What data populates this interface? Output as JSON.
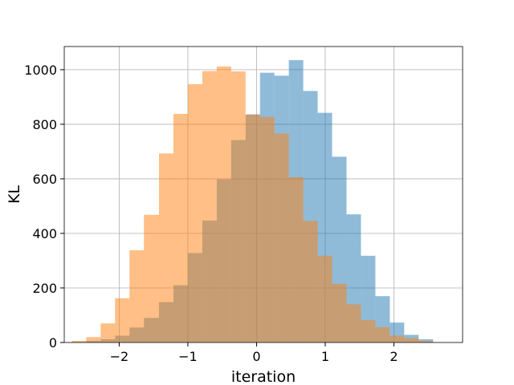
{
  "chart_data": {
    "type": "bar",
    "title": "",
    "xlabel": "iteration",
    "ylabel": "KL",
    "xlim": [
      -2.8,
      3.0
    ],
    "ylim": [
      0,
      1085
    ],
    "xticks": [
      -2,
      -1,
      0,
      1,
      2
    ],
    "yticks": [
      0,
      200,
      400,
      600,
      800,
      1000
    ],
    "grid": true,
    "legend": "none",
    "series": [
      {
        "color": "#1f77b4",
        "opacity": 0.5,
        "bins": [
          [
            -2.69,
            -2.48,
            2
          ],
          [
            -2.48,
            -2.27,
            6
          ],
          [
            -2.27,
            -2.06,
            12
          ],
          [
            -2.06,
            -1.85,
            25
          ],
          [
            -1.85,
            -1.64,
            55
          ],
          [
            -1.64,
            -1.42,
            90
          ],
          [
            -1.42,
            -1.21,
            148
          ],
          [
            -1.21,
            -1.0,
            210
          ],
          [
            -1.0,
            -0.79,
            328
          ],
          [
            -0.79,
            -0.58,
            447
          ],
          [
            -0.58,
            -0.37,
            598
          ],
          [
            -0.37,
            -0.16,
            742
          ],
          [
            -0.16,
            0.05,
            836
          ],
          [
            0.05,
            0.26,
            989
          ],
          [
            0.26,
            0.47,
            978
          ],
          [
            0.47,
            0.68,
            1035
          ],
          [
            0.68,
            0.89,
            922
          ],
          [
            0.89,
            1.1,
            842
          ],
          [
            1.1,
            1.31,
            681
          ],
          [
            1.31,
            1.52,
            470
          ],
          [
            1.52,
            1.73,
            318
          ],
          [
            1.73,
            1.94,
            170
          ],
          [
            1.94,
            2.15,
            73
          ],
          [
            2.15,
            2.36,
            28
          ],
          [
            2.36,
            2.57,
            12
          ]
        ]
      },
      {
        "color": "#ff7f0e",
        "opacity": 0.5,
        "bins": [
          [
            -2.69,
            -2.48,
            6
          ],
          [
            -2.48,
            -2.27,
            20
          ],
          [
            -2.27,
            -2.06,
            70
          ],
          [
            -2.06,
            -1.85,
            162
          ],
          [
            -1.85,
            -1.64,
            338
          ],
          [
            -1.64,
            -1.42,
            468
          ],
          [
            -1.42,
            -1.21,
            693
          ],
          [
            -1.21,
            -1.0,
            838
          ],
          [
            -1.0,
            -0.79,
            947
          ],
          [
            -0.79,
            -0.58,
            995
          ],
          [
            -0.58,
            -0.37,
            1012
          ],
          [
            -0.37,
            -0.16,
            994
          ],
          [
            -0.16,
            0.05,
            836
          ],
          [
            0.05,
            0.26,
            827
          ],
          [
            0.26,
            0.47,
            766
          ],
          [
            0.47,
            0.68,
            606
          ],
          [
            0.68,
            0.89,
            446
          ],
          [
            0.89,
            1.1,
            318
          ],
          [
            1.1,
            1.31,
            215
          ],
          [
            1.31,
            1.52,
            140
          ],
          [
            1.52,
            1.73,
            82
          ],
          [
            1.73,
            1.94,
            56
          ],
          [
            1.94,
            2.15,
            25
          ],
          [
            2.15,
            2.36,
            16
          ],
          [
            2.36,
            2.57,
            6
          ]
        ]
      }
    ]
  }
}
